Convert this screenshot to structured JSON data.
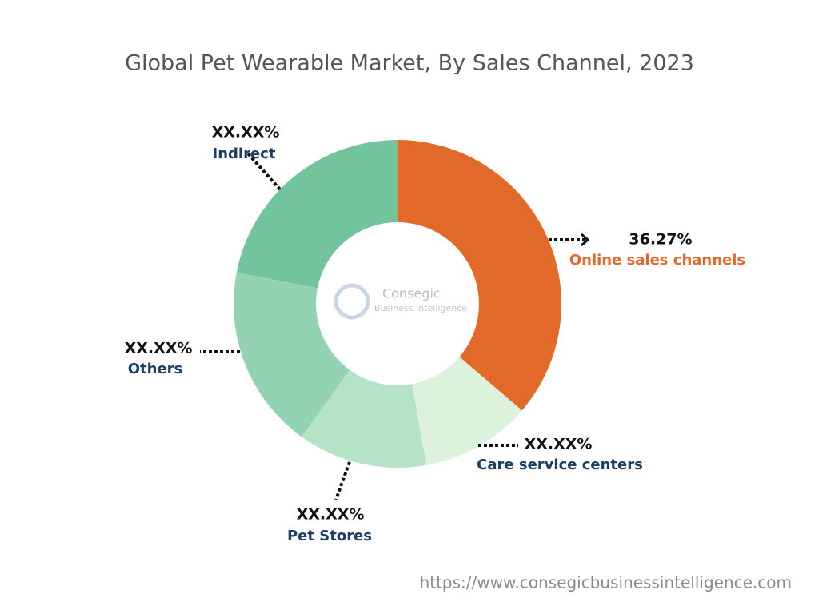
{
  "chart_data": {
    "type": "donut",
    "title": "Global Pet Wearable Market, By Sales Channel, 2023",
    "categories": [
      "Online sales channels",
      "Care service centers",
      "Pet Stores",
      "Others",
      "Indirect"
    ],
    "values": [
      36.27,
      10.9,
      12.8,
      18.1,
      21.93
    ],
    "value_labels": [
      "36.27%",
      "XX.XX%",
      "XX.XX%",
      "XX.XX%",
      "XX.XX%"
    ],
    "colors": [
      "#e3692a",
      "#dcf2dc",
      "#b5e3c8",
      "#93d3b1",
      "#72c49c"
    ]
  },
  "watermark": {
    "name": "Consegic",
    "tagline": "Business Intelligence"
  },
  "source_url": "https://www.consegicbusinessintelligence.com"
}
